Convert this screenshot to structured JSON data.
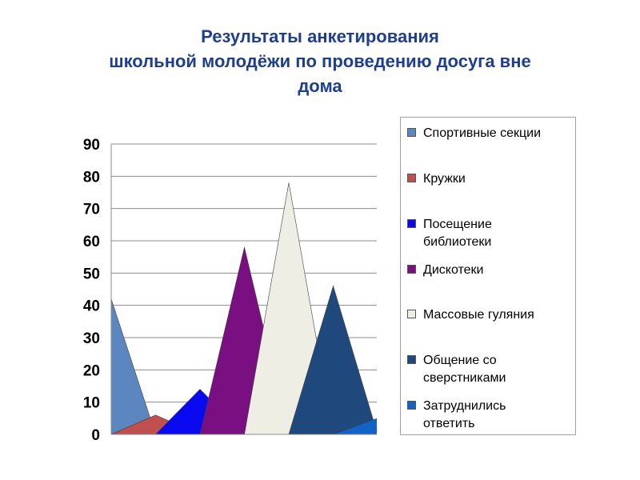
{
  "title": {
    "line1": "Результаты анкетирования",
    "line2": "школьной молодёжи по проведению досуга вне",
    "line3": "дома"
  },
  "chart_data": {
    "type": "area",
    "shape": "triangle",
    "title": "Результаты анкетирования школьной молодёжи по проведению досуга вне дома",
    "xlabel": "",
    "ylabel": "",
    "ylim": [
      0,
      90
    ],
    "yticks": [
      0,
      10,
      20,
      30,
      40,
      50,
      60,
      70,
      80,
      90
    ],
    "grid": true,
    "legend_position": "right",
    "series": [
      {
        "name": "Спортивные секции",
        "value": 42,
        "color": "#5b86c0"
      },
      {
        "name": "Кружки",
        "value": 6,
        "color": "#c0504d"
      },
      {
        "name": "Посещение библиотеки",
        "value": 14,
        "color": "#0a0af0"
      },
      {
        "name": "Дискотеки",
        "value": 58,
        "color": "#7a0f82"
      },
      {
        "name": "Массовые гуляния",
        "value": 78,
        "color": "#eeeee4"
      },
      {
        "name": "Общение со сверстниками",
        "value": 46,
        "color": "#1f497d"
      },
      {
        "name": "Затруднились ответить",
        "value": 5,
        "color": "#1262c8"
      }
    ]
  },
  "legend": {
    "items": [
      {
        "label": "Спортивные секции"
      },
      {
        "label": "Кружки"
      },
      {
        "label": " Посещение\nбиблиотеки"
      },
      {
        "label": "Дискотеки"
      },
      {
        "label": "Массовые гуляния"
      },
      {
        "label": "Общение со\nсверстниками"
      },
      {
        "label": "Затруднились\nответить"
      }
    ]
  }
}
